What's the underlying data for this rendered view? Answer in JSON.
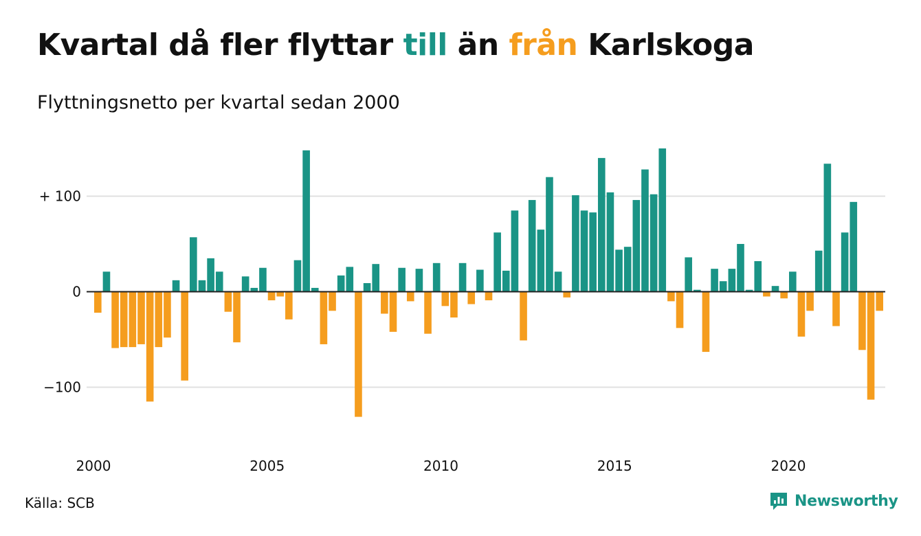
{
  "title": {
    "part1": "Kvartal då fler flyttar ",
    "pos_word": "till",
    "part2": " än ",
    "neg_word": "från",
    "part3": " Karlskoga"
  },
  "subtitle": "Flyttningsnetto per kvartal sedan 2000",
  "source": "Källa: SCB",
  "brand": "Newsworthy",
  "colors": {
    "positive": "#1a9486",
    "negative": "#f59d1e",
    "grid": "#e0e0e0",
    "axis": "#222222"
  },
  "chart_data": {
    "type": "bar",
    "title": "Kvartal då fler flyttar till än från Karlskoga",
    "subtitle": "Flyttningsnetto per kvartal sedan 2000",
    "start": "2000 Q1",
    "ylim": [
      -160,
      160
    ],
    "yticks": [
      {
        "value": 100,
        "label": "+ 100"
      },
      {
        "value": 0,
        "label": "0"
      },
      {
        "value": -100,
        "label": "−100"
      }
    ],
    "xticks": [
      {
        "label": "2000",
        "index": 0
      },
      {
        "label": "2005",
        "index": 20
      },
      {
        "label": "2010",
        "index": 40
      },
      {
        "label": "2015",
        "index": 60
      },
      {
        "label": "2020",
        "index": 80
      }
    ],
    "grid": true,
    "values": [
      -22,
      21,
      -59,
      -58,
      -58,
      -55,
      -115,
      -58,
      -48,
      12,
      -93,
      57,
      12,
      35,
      21,
      -21,
      -53,
      16,
      4,
      25,
      -9,
      -5,
      -29,
      33,
      148,
      4,
      -55,
      -20,
      17,
      26,
      -131,
      9,
      29,
      -23,
      -42,
      25,
      -10,
      24,
      -44,
      30,
      -15,
      -27,
      30,
      -13,
      23,
      -9,
      62,
      22,
      85,
      -51,
      96,
      65,
      120,
      21,
      -6,
      101,
      85,
      83,
      140,
      104,
      44,
      47,
      96,
      128,
      102,
      150,
      -10,
      -38,
      36,
      2,
      -63,
      24,
      11,
      24,
      50,
      2,
      32,
      -5,
      6,
      -7,
      21,
      -47,
      -20,
      43,
      134,
      -36,
      62,
      94,
      -61,
      -113,
      -20
    ]
  }
}
